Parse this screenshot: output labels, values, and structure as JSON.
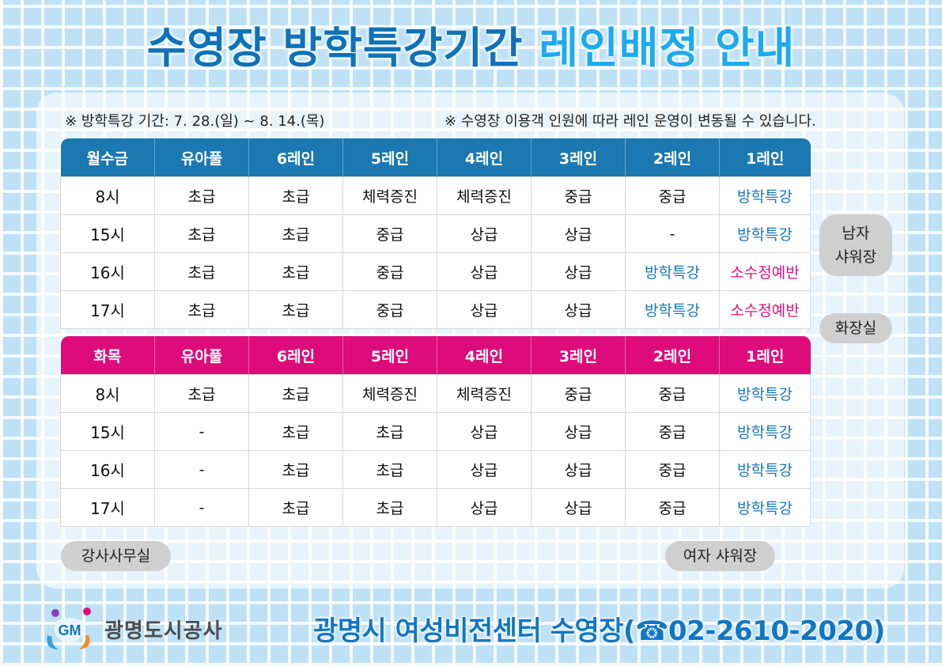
{
  "title": {
    "part1": "수영장 방학특강기간",
    "part2": "레인배정 안내"
  },
  "notes": {
    "period": "※ 방학특강 기간: 7. 28.(일) ~ 8. 14.(목)",
    "notice": "※ 수영장 이용객 인원에 따라 레인 운영이 변동될 수 있습니다."
  },
  "colors": {
    "blue_header": "#1b78b0",
    "pink_header": "#de0c7a",
    "title_dark": "#0f72b8",
    "title_light": "#1eaaef"
  },
  "schedule_mwf": {
    "headers": [
      "월수금",
      "유아풀",
      "6레인",
      "5레인",
      "4레인",
      "3레인",
      "2레인",
      "1레인"
    ],
    "rows": [
      [
        "8시",
        "초급",
        "초급",
        "체력증진",
        "체력증진",
        "중급",
        "중급",
        "방학특강"
      ],
      [
        "15시",
        "초급",
        "초급",
        "중급",
        "상급",
        "상급",
        "-",
        "방학특강"
      ],
      [
        "16시",
        "초급",
        "초급",
        "중급",
        "상급",
        "상급",
        "방학특강",
        "소수정예반"
      ],
      [
        "17시",
        "초급",
        "초급",
        "중급",
        "상급",
        "상급",
        "방학특강",
        "소수정예반"
      ]
    ]
  },
  "schedule_tt": {
    "headers": [
      "화목",
      "유아풀",
      "6레인",
      "5레인",
      "4레인",
      "3레인",
      "2레인",
      "1레인"
    ],
    "rows": [
      [
        "8시",
        "초급",
        "초급",
        "체력증진",
        "체력증진",
        "중급",
        "중급",
        "방학특강"
      ],
      [
        "15시",
        "-",
        "초급",
        "초급",
        "상급",
        "상급",
        "중급",
        "방학특강"
      ],
      [
        "16시",
        "-",
        "초급",
        "초급",
        "상급",
        "상급",
        "중급",
        "방학특강"
      ],
      [
        "17시",
        "-",
        "초급",
        "초급",
        "상급",
        "상급",
        "중급",
        "방학특강"
      ]
    ]
  },
  "facilities": {
    "men_shower_line1": "남자",
    "men_shower_line2": "샤워장",
    "restroom": "화장실",
    "instructor_office": "강사사무실",
    "women_shower": "여자 샤워장"
  },
  "logo": {
    "mark": "GM",
    "name": "광명도시공사"
  },
  "footer": "광명시 여성비전센터 수영장(☎02-2610-2020)"
}
